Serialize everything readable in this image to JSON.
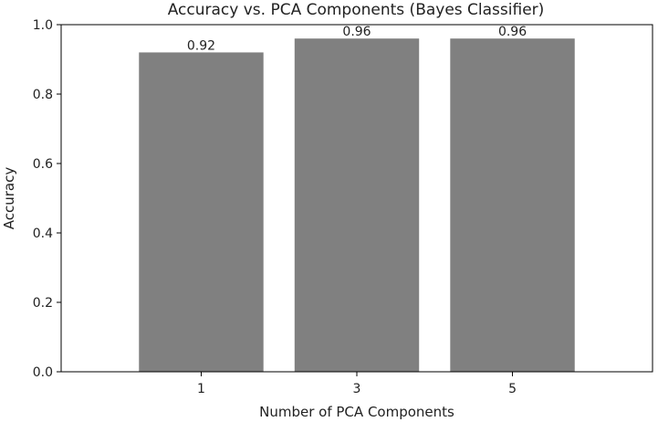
{
  "chart_data": {
    "type": "bar",
    "title": "Accuracy vs. PCA Components (Bayes Classifier)",
    "xlabel": "Number of PCA Components",
    "ylabel": "Accuracy",
    "categories": [
      "1",
      "3",
      "5"
    ],
    "values": [
      0.92,
      0.96,
      0.96
    ],
    "data_labels": [
      "0.92",
      "0.96",
      "0.96"
    ],
    "ylim": [
      0,
      1.0
    ],
    "yticks": [
      0.0,
      0.2,
      0.4,
      0.6,
      0.8,
      1.0
    ],
    "ytick_labels": [
      "0.0",
      "0.2",
      "0.4",
      "0.6",
      "0.8",
      "1.0"
    ],
    "bar_color": "#808080",
    "grid": false,
    "legend": "none"
  }
}
